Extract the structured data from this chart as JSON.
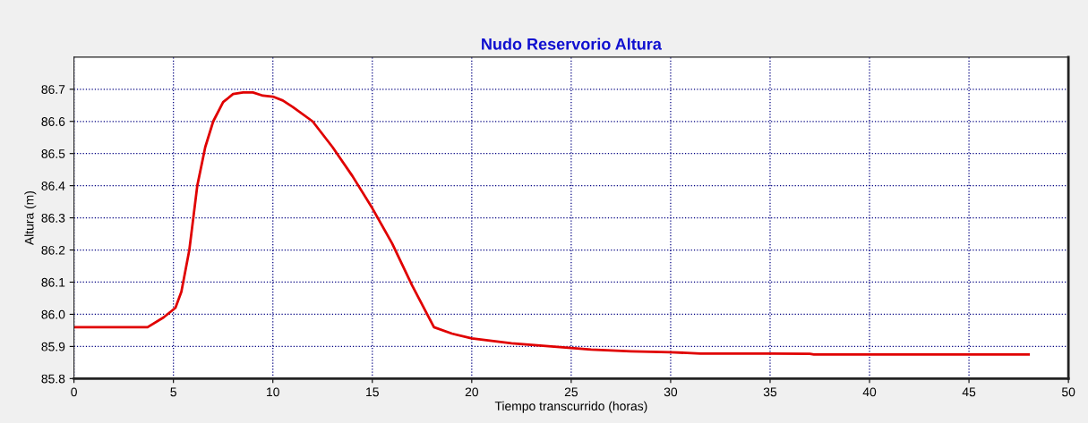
{
  "chart_data": {
    "type": "line",
    "title": "Nudo Reservorio Altura",
    "xlabel": "Tiempo transcurrido (horas)",
    "ylabel": "Altura (m)",
    "x": [
      0,
      3.7,
      4.5,
      5.1,
      5.4,
      5.8,
      6.2,
      6.6,
      7.0,
      7.5,
      8.0,
      8.5,
      9.0,
      9.5,
      10.0,
      10.5,
      11,
      12,
      13,
      14,
      15,
      16,
      17,
      18.1,
      19,
      20,
      22,
      24,
      26,
      28,
      30,
      31.5,
      35,
      37,
      37.2,
      48
    ],
    "series": [
      {
        "color": "#e00000",
        "values": [
          85.96,
          85.96,
          85.99,
          86.02,
          86.07,
          86.2,
          86.4,
          86.52,
          86.6,
          86.66,
          86.685,
          86.69,
          86.69,
          86.68,
          86.677,
          86.665,
          86.645,
          86.6,
          86.52,
          86.43,
          86.33,
          86.22,
          86.09,
          85.96,
          85.94,
          85.925,
          85.91,
          85.9,
          85.89,
          85.885,
          85.882,
          85.878,
          85.878,
          85.877,
          85.875,
          85.875
        ]
      }
    ],
    "xlim": [
      0,
      50
    ],
    "xticks": [
      0,
      5,
      10,
      15,
      20,
      25,
      30,
      35,
      40,
      45,
      50
    ],
    "ylim": [
      85.8,
      86.8
    ],
    "yticks": [
      85.8,
      85.9,
      {
        "value": 86.0,
        "label": "86.0"
      },
      86.1,
      86.2,
      86.3,
      86.4,
      86.5,
      86.6,
      86.7
    ],
    "grid": true,
    "marker": "none",
    "line_style": "solid"
  }
}
